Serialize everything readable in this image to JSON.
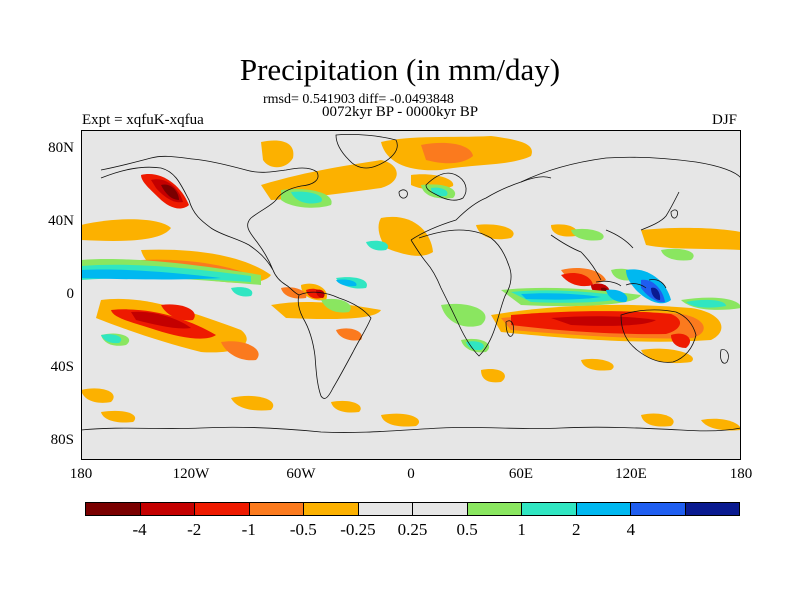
{
  "title": "Precipitation (in mm/day)",
  "stats": "rmsd= 0.541903 diff= -0.0493848",
  "period": "0072kyr BP - 0000kyr BP",
  "experiment": "Expt = xqfuK-xqfua",
  "season": "DJF",
  "y_ticks": [
    "80N",
    "40N",
    "0",
    "40S",
    "80S"
  ],
  "x_ticks": [
    "180",
    "120W",
    "60W",
    "0",
    "60E",
    "120E",
    "180"
  ],
  "colorbar": {
    "colors": [
      "#7a0000",
      "#c40000",
      "#ee1a00",
      "#fb7a1e",
      "#fcb100",
      "#e6e6e6",
      "#e6e6e6",
      "#8ae660",
      "#30e6c2",
      "#00b8f0",
      "#1f5ef0",
      "#0a1a90"
    ],
    "labels": [
      "-4",
      "-2",
      "-1",
      "-0.5",
      "-0.25",
      "0.25",
      "0.5",
      "1",
      "2",
      "4"
    ]
  },
  "colors": {
    "background": "#e6e6e6",
    "coast": "#111111"
  }
}
